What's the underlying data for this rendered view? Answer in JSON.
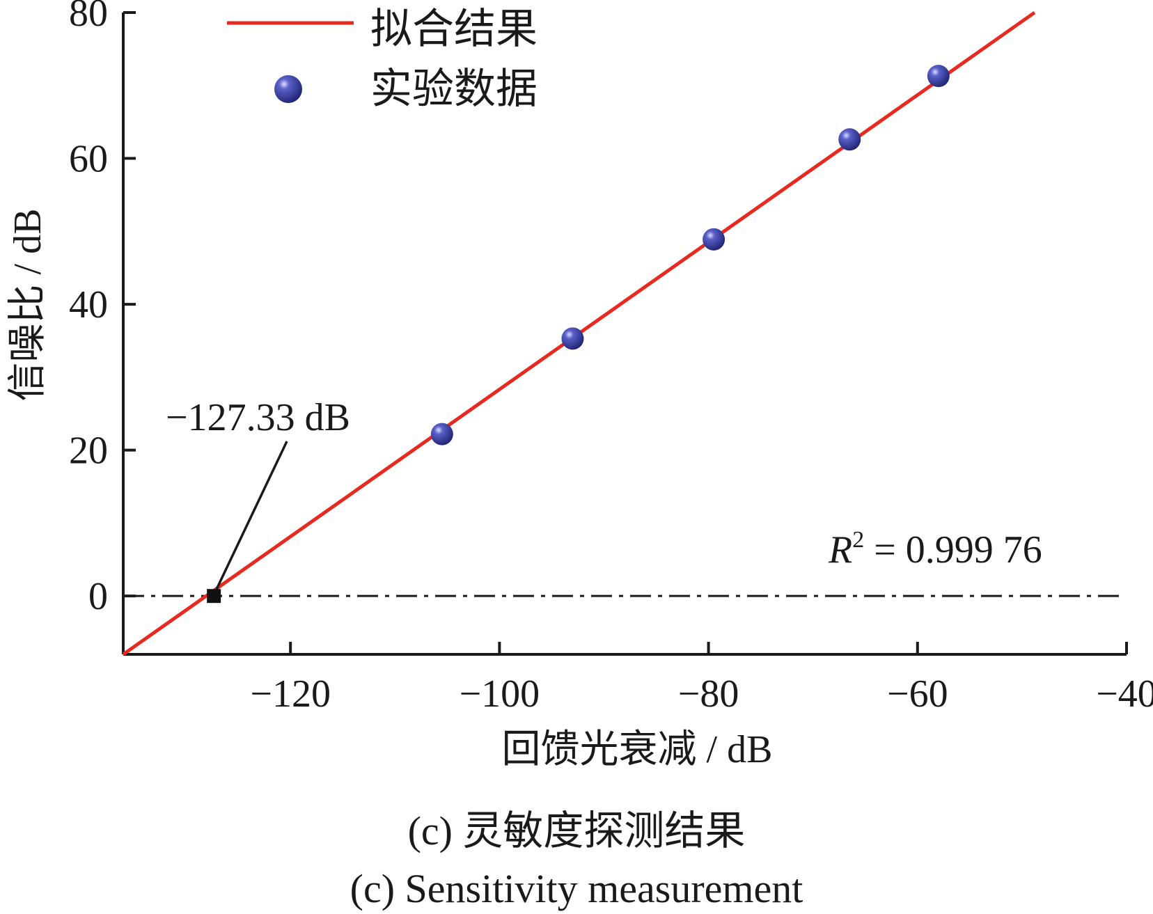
{
  "chart_data": {
    "type": "scatter",
    "xlabel": "回馈光衰减 / dB",
    "ylabel": "信噪比 / dB",
    "xlim": [
      -136,
      -40
    ],
    "ylim": [
      -8,
      80
    ],
    "x_ticks": [
      -120,
      -100,
      -80,
      -60,
      -40
    ],
    "y_ticks": [
      0,
      20,
      40,
      60,
      80
    ],
    "x_tick_labels": [
      "−120",
      "−100",
      "−80",
      "−60",
      "−40"
    ],
    "y_tick_labels": [
      "0",
      "20",
      "40",
      "60",
      "80"
    ],
    "series": [
      {
        "name": "实验数据",
        "kind": "scatter",
        "color": "#2b2f8f",
        "x": [
          -105.5,
          -93.0,
          -79.5,
          -66.5,
          -58.0
        ],
        "y": [
          22.2,
          35.3,
          48.9,
          62.6,
          71.3
        ]
      },
      {
        "name": "拟合结果",
        "kind": "line",
        "color": "#e8291f",
        "x": [
          -136.0,
          -48.8
        ],
        "y": [
          -8.0,
          80.0
        ]
      }
    ],
    "reference_line": {
      "y": 0,
      "style": "dash-dot",
      "color": "#1a1a1a"
    },
    "marker_point": {
      "x": -127.33,
      "y": 0
    },
    "annotations": {
      "intercept_label": "−127.33 dB",
      "r2_symbol": "R",
      "r2_superscript": "2",
      "r2_value": " = 0.999 76"
    },
    "legend_placement": "top-left",
    "grid": false
  },
  "caption": {
    "cn": "(c) 灵敏度探测结果",
    "en": "(c) Sensitivity measurement"
  }
}
